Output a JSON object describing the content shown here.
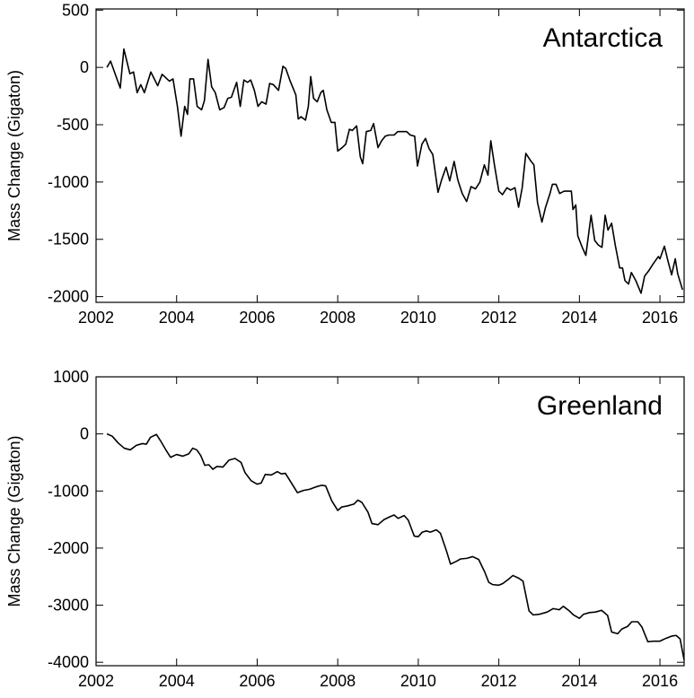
{
  "chart_data": [
    {
      "type": "line",
      "annotation": "Antarctica",
      "ylabel": "Mass Change (Gigaton)",
      "color": "#000000",
      "xlim": [
        2002,
        2016.6
      ],
      "xticks": [
        2002,
        2004,
        2006,
        2008,
        2010,
        2012,
        2014,
        2016
      ],
      "ylim": [
        -2050,
        510
      ],
      "yticks": [
        500,
        0,
        -500,
        -1000,
        -1500,
        -2000
      ],
      "x": [
        2002.27,
        2002.36,
        2002.6,
        2002.69,
        2002.84,
        2002.93,
        2003.02,
        2003.11,
        2003.2,
        2003.36,
        2003.53,
        2003.64,
        2003.82,
        2003.91,
        2004.02,
        2004.11,
        2004.2,
        2004.27,
        2004.33,
        2004.42,
        2004.51,
        2004.62,
        2004.69,
        2004.78,
        2004.87,
        2004.96,
        2005.07,
        2005.18,
        2005.27,
        2005.36,
        2005.49,
        2005.58,
        2005.67,
        2005.76,
        2005.84,
        2005.93,
        2006.02,
        2006.11,
        2006.22,
        2006.31,
        2006.4,
        2006.53,
        2006.64,
        2006.71,
        2006.82,
        2006.96,
        2007.02,
        2007.09,
        2007.2,
        2007.27,
        2007.33,
        2007.4,
        2007.49,
        2007.58,
        2007.64,
        2007.73,
        2007.84,
        2007.93,
        2008.0,
        2008.11,
        2008.2,
        2008.29,
        2008.36,
        2008.47,
        2008.56,
        2008.62,
        2008.71,
        2008.82,
        2008.89,
        2009.0,
        2009.09,
        2009.18,
        2009.27,
        2009.4,
        2009.49,
        2009.58,
        2009.71,
        2009.8,
        2009.91,
        2009.98,
        2010.09,
        2010.18,
        2010.27,
        2010.36,
        2010.49,
        2010.58,
        2010.69,
        2010.78,
        2010.89,
        2010.98,
        2011.09,
        2011.2,
        2011.31,
        2011.42,
        2011.53,
        2011.64,
        2011.73,
        2011.8,
        2011.89,
        2012.0,
        2012.09,
        2012.2,
        2012.29,
        2012.4,
        2012.49,
        2012.58,
        2012.67,
        2012.78,
        2012.87,
        2012.96,
        2013.07,
        2013.16,
        2013.27,
        2013.33,
        2013.42,
        2013.51,
        2013.62,
        2013.71,
        2013.8,
        2013.84,
        2013.91,
        2013.96,
        2014.07,
        2014.16,
        2014.29,
        2014.38,
        2014.47,
        2014.56,
        2014.64,
        2014.71,
        2014.8,
        2014.89,
        2015.0,
        2015.07,
        2015.13,
        2015.22,
        2015.29,
        2015.4,
        2015.53,
        2015.62,
        2015.71,
        2015.84,
        2015.96,
        2016.0,
        2016.11,
        2016.2,
        2016.29,
        2016.38,
        2016.44,
        2016.56
      ],
      "values": [
        0,
        55,
        -180,
        160,
        -55,
        -40,
        -220,
        -150,
        -220,
        -40,
        -160,
        -60,
        -120,
        -100,
        -340,
        -600,
        -340,
        -410,
        -100,
        -100,
        -340,
        -370,
        -290,
        70,
        -170,
        -220,
        -370,
        -350,
        -270,
        -260,
        -130,
        -340,
        -110,
        -130,
        -110,
        -200,
        -340,
        -300,
        -320,
        -140,
        -150,
        -200,
        10,
        -10,
        -120,
        -240,
        -450,
        -430,
        -460,
        -340,
        -80,
        -270,
        -300,
        -220,
        -200,
        -370,
        -480,
        -480,
        -730,
        -700,
        -670,
        -540,
        -550,
        -510,
        -780,
        -840,
        -560,
        -550,
        -490,
        -700,
        -640,
        -600,
        -590,
        -590,
        -560,
        -560,
        -560,
        -590,
        -600,
        -860,
        -670,
        -620,
        -710,
        -760,
        -1090,
        -980,
        -870,
        -990,
        -820,
        -980,
        -1100,
        -1170,
        -1040,
        -1060,
        -1000,
        -850,
        -940,
        -640,
        -850,
        -1080,
        -1110,
        -1050,
        -1070,
        -1050,
        -1220,
        -1050,
        -750,
        -810,
        -850,
        -1180,
        -1350,
        -1220,
        -1100,
        -1020,
        -1020,
        -1100,
        -1080,
        -1080,
        -1080,
        -1240,
        -1200,
        -1470,
        -1570,
        -1640,
        -1290,
        -1510,
        -1550,
        -1570,
        -1290,
        -1420,
        -1360,
        -1550,
        -1750,
        -1750,
        -1860,
        -1890,
        -1790,
        -1860,
        -1970,
        -1820,
        -1780,
        -1710,
        -1650,
        -1670,
        -1560,
        -1690,
        -1810,
        -1670,
        -1800,
        -1940
      ]
    },
    {
      "type": "line",
      "annotation": "Greenland",
      "ylabel": "Mass Change (Gigaton)",
      "color": "#000000",
      "xlim": [
        2002,
        2016.6
      ],
      "xticks": [
        2002,
        2004,
        2006,
        2008,
        2010,
        2012,
        2014,
        2016
      ],
      "ylim": [
        -4060,
        1000
      ],
      "yticks": [
        1000,
        0,
        -1000,
        -2000,
        -3000,
        -4000
      ],
      "x": [
        2002.27,
        2002.4,
        2002.55,
        2002.7,
        2002.85,
        2003.0,
        2003.15,
        2003.25,
        2003.35,
        2003.5,
        2003.6,
        2003.75,
        2003.85,
        2004.0,
        2004.15,
        2004.3,
        2004.4,
        2004.5,
        2004.6,
        2004.7,
        2004.8,
        2004.9,
        2005.0,
        2005.15,
        2005.3,
        2005.45,
        2005.6,
        2005.7,
        2005.85,
        2006.0,
        2006.1,
        2006.2,
        2006.35,
        2006.5,
        2006.6,
        2006.7,
        2006.85,
        2007.0,
        2007.15,
        2007.3,
        2007.45,
        2007.6,
        2007.7,
        2007.85,
        2008.0,
        2008.1,
        2008.25,
        2008.4,
        2008.5,
        2008.6,
        2008.75,
        2008.85,
        2009.0,
        2009.15,
        2009.3,
        2009.4,
        2009.5,
        2009.65,
        2009.75,
        2009.9,
        2010.0,
        2010.1,
        2010.2,
        2010.3,
        2010.45,
        2010.55,
        2010.7,
        2010.8,
        2010.95,
        2011.05,
        2011.2,
        2011.35,
        2011.5,
        2011.65,
        2011.75,
        2011.85,
        2012.0,
        2012.1,
        2012.25,
        2012.35,
        2012.5,
        2012.6,
        2012.75,
        2012.85,
        2013.0,
        2013.2,
        2013.35,
        2013.5,
        2013.6,
        2013.75,
        2013.85,
        2014.0,
        2014.1,
        2014.25,
        2014.4,
        2014.55,
        2014.7,
        2014.8,
        2014.95,
        2015.05,
        2015.2,
        2015.3,
        2015.45,
        2015.55,
        2015.7,
        2015.85,
        2016.0,
        2016.15,
        2016.3,
        2016.4,
        2016.5,
        2016.6
      ],
      "values": [
        0,
        -40,
        -160,
        -250,
        -280,
        -200,
        -170,
        -180,
        -60,
        -10,
        -120,
        -300,
        -410,
        -360,
        -390,
        -350,
        -250,
        -280,
        -380,
        -550,
        -540,
        -620,
        -570,
        -580,
        -460,
        -430,
        -500,
        -680,
        -820,
        -880,
        -860,
        -710,
        -720,
        -660,
        -700,
        -690,
        -860,
        -1030,
        -990,
        -970,
        -930,
        -900,
        -910,
        -1170,
        -1340,
        -1280,
        -1260,
        -1230,
        -1160,
        -1200,
        -1370,
        -1570,
        -1590,
        -1500,
        -1450,
        -1420,
        -1480,
        -1430,
        -1510,
        -1790,
        -1800,
        -1720,
        -1700,
        -1720,
        -1680,
        -1740,
        -2050,
        -2280,
        -2230,
        -2190,
        -2180,
        -2150,
        -2200,
        -2420,
        -2600,
        -2640,
        -2650,
        -2620,
        -2540,
        -2480,
        -2530,
        -2580,
        -3100,
        -3170,
        -3160,
        -3120,
        -3060,
        -3080,
        -3020,
        -3100,
        -3170,
        -3230,
        -3160,
        -3130,
        -3120,
        -3090,
        -3180,
        -3470,
        -3500,
        -3420,
        -3370,
        -3290,
        -3290,
        -3380,
        -3640,
        -3630,
        -3630,
        -3580,
        -3540,
        -3530,
        -3590,
        -3960
      ]
    }
  ]
}
